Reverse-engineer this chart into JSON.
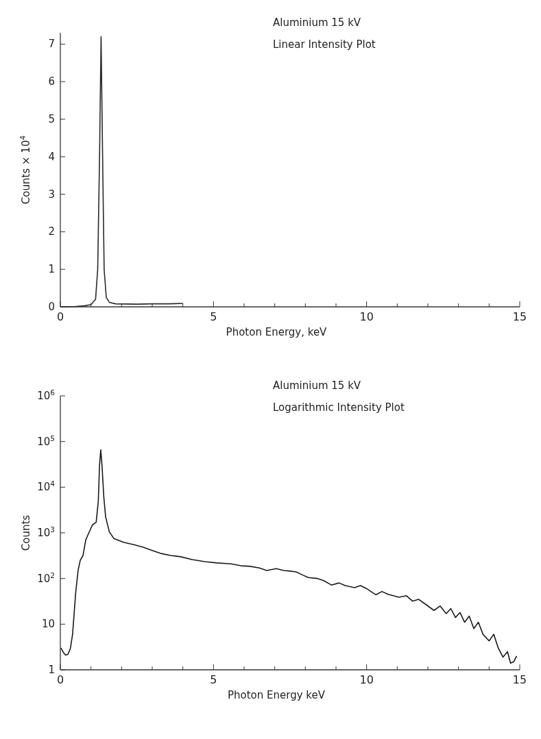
{
  "chart_data": [
    {
      "type": "line",
      "title": "Aluminium  15 kV",
      "subtitle": "Linear Intensity Plot",
      "xlabel": "Photon Energy, keV",
      "ylabel": "Counts × 10$^{4}$",
      "x": [
        0,
        0.5,
        0.8,
        1.0,
        1.15,
        1.22,
        1.28,
        1.33,
        1.38,
        1.43,
        1.5,
        1.6,
        1.8,
        2.5,
        3,
        3.5,
        4
      ],
      "series": [
        {
          "color": "#2a2a2a",
          "values": [
            0,
            0.01,
            0.03,
            0.06,
            0.2,
            1,
            4,
            7.2,
            4,
            1,
            0.25,
            0.12,
            0.08,
            0.07,
            0.08,
            0.08,
            0.09
          ]
        }
      ],
      "xlim": [
        0,
        15
      ],
      "xticks": [
        0,
        {
          "value": 1,
          "label": null
        },
        {
          "value": 2,
          "label": null
        },
        {
          "value": 3,
          "label": null
        },
        {
          "value": 4,
          "label": null
        },
        5,
        {
          "value": 6,
          "label": null
        },
        {
          "value": 7,
          "label": null
        },
        {
          "value": 8,
          "label": null
        },
        {
          "value": 9,
          "label": null
        },
        10,
        {
          "value": 11,
          "label": null
        },
        {
          "value": 12,
          "label": null
        },
        {
          "value": 13,
          "label": null
        },
        {
          "value": 14,
          "label": null
        },
        15
      ],
      "ylim": [
        0,
        7.3
      ],
      "yticks": [
        0,
        1,
        2,
        3,
        4,
        5,
        6,
        7
      ]
    },
    {
      "type": "line",
      "title": "Aluminium  15 kV",
      "subtitle": "Logarithmic Intensity Plot",
      "xlabel": "Photon Energy  keV",
      "ylabel": "Counts",
      "log": "y",
      "x": [
        0.02,
        0.1,
        0.17,
        0.25,
        0.33,
        0.4,
        0.5,
        0.58,
        0.65,
        0.74,
        0.83,
        0.93,
        1.05,
        1.17,
        1.24,
        1.28,
        1.32,
        1.36,
        1.42,
        1.48,
        1.6,
        1.75,
        2.06,
        2.4,
        2.69,
        3.0,
        3.31,
        3.6,
        3.93,
        4.3,
        4.71,
        5.1,
        5.57,
        5.9,
        6.19,
        6.5,
        6.74,
        7.05,
        7.3,
        7.5,
        7.7,
        7.9,
        8.1,
        8.4,
        8.6,
        8.85,
        9.1,
        9.3,
        9.6,
        9.8,
        10.0,
        10.3,
        10.5,
        10.7,
        11.06,
        11.3,
        11.5,
        11.7,
        11.9,
        12.2,
        12.4,
        12.6,
        12.75,
        12.9,
        13.05,
        13.2,
        13.35,
        13.5,
        13.65,
        13.8,
        14.0,
        14.15,
        14.3,
        14.45,
        14.6,
        14.7,
        14.8,
        14.9
      ],
      "series": [
        {
          "color": "#1a1a1a",
          "values": [
            3,
            2.4,
            2.1,
            2.2,
            3,
            6,
            48,
            150,
            250,
            320,
            700,
            1000,
            1500,
            1700,
            5000,
            30000,
            66000,
            30000,
            6000,
            2200,
            1050,
            750,
            620,
            550,
            490,
            410,
            350,
            320,
            300,
            260,
            235,
            220,
            210,
            190,
            185,
            170,
            150,
            165,
            150,
            145,
            140,
            120,
            105,
            100,
            90,
            72,
            80,
            70,
            63,
            70,
            60,
            44,
            52,
            45,
            39,
            42,
            32,
            35,
            28,
            20,
            25,
            17,
            22,
            14,
            18,
            11,
            15,
            8,
            11,
            6,
            4.3,
            6,
            3,
            1.9,
            2.5,
            1.4,
            1.5,
            2
          ]
        }
      ],
      "xlim": [
        0,
        15
      ],
      "xticks": [
        0,
        {
          "value": 1,
          "label": null
        },
        {
          "value": 2,
          "label": null
        },
        {
          "value": 3,
          "label": null
        },
        {
          "value": 4,
          "label": null
        },
        5,
        {
          "value": 6,
          "label": null
        },
        {
          "value": 7,
          "label": null
        },
        {
          "value": 8,
          "label": null
        },
        {
          "value": 9,
          "label": null
        },
        10,
        {
          "value": 11,
          "label": null
        },
        {
          "value": 12,
          "label": null
        },
        {
          "value": 13,
          "label": null
        },
        {
          "value": 14,
          "label": null
        },
        15
      ],
      "ylim": [
        1,
        1000000
      ],
      "yticks": [
        1,
        10,
        {
          "value": 100,
          "label": "10$^{2}$"
        },
        {
          "value": 1000,
          "label": "10$^{3}$"
        },
        {
          "value": 10000,
          "label": "10$^{4}$"
        },
        {
          "value": 100000,
          "label": "10$^{5}$"
        },
        {
          "value": 1000000,
          "label": "10$^{6}$"
        }
      ]
    }
  ]
}
